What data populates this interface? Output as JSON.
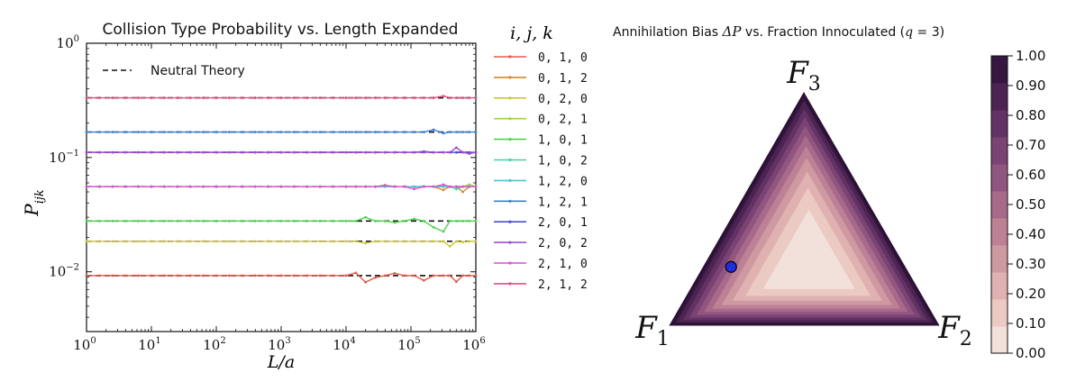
{
  "chart_data": [
    {
      "type": "line",
      "title": "Collision Type Probability vs. Length Expanded",
      "xlabel": "L/a",
      "ylabel": "P_ijk",
      "xscale": "log",
      "yscale": "log",
      "xlim": [
        1,
        1000000
      ],
      "ylim": [
        0.003,
        1
      ],
      "xticks": [
        {
          "value": 1,
          "base": "10",
          "exp": "0"
        },
        {
          "value": 10,
          "base": "10",
          "exp": "1"
        },
        {
          "value": 100,
          "base": "10",
          "exp": "2"
        },
        {
          "value": 1000,
          "base": "10",
          "exp": "3"
        },
        {
          "value": 10000,
          "base": "10",
          "exp": "4"
        },
        {
          "value": 100000,
          "base": "10",
          "exp": "5"
        },
        {
          "value": 1000000,
          "base": "10",
          "exp": "6"
        }
      ],
      "yticks": [
        {
          "value": 0.01,
          "base": "10",
          "exp": "−2"
        },
        {
          "value": 0.1,
          "base": "10",
          "exp": "−1"
        },
        {
          "value": 1,
          "base": "10",
          "exp": "0"
        }
      ],
      "legend_inner": {
        "label": "Neutral Theory",
        "position": "top-left"
      },
      "legend_title": "i, j, k",
      "legend_position": "outside-right",
      "neutral_levels": [
        0.333,
        0.167,
        0.111,
        0.0556,
        0.0278,
        0.0185,
        0.00926
      ],
      "x_samples_log10": [
        0,
        0.2,
        0.4,
        0.6,
        0.8,
        1.0,
        1.2,
        1.4,
        1.6,
        1.8,
        2.0,
        2.2,
        2.4,
        2.6,
        2.8,
        3.0,
        3.2,
        3.4,
        3.6,
        3.8,
        4.0,
        4.15,
        4.3,
        4.45,
        4.6,
        4.75,
        4.9,
        5.05,
        5.2,
        5.35,
        5.5,
        5.6,
        5.7,
        5.8,
        5.9,
        6.0
      ],
      "series": [
        {
          "name": "0, 1, 0",
          "color": "#e35a4c",
          "level": 0.00926,
          "deviations": {
            "4.15": 0.0098,
            "4.3": 0.0081,
            "4.45": 0.0089,
            "4.75": 0.0097,
            "5.2": 0.0084,
            "5.7": 0.0082,
            "6.0": 0.0076
          }
        },
        {
          "name": "0, 1, 2",
          "color": "#d4892b",
          "level": 0.0556,
          "deviations": {
            "5.5": 0.052,
            "5.8": 0.05,
            "6.0": 0.054
          }
        },
        {
          "name": "0, 2, 0",
          "color": "#c8c833",
          "level": 0.0185,
          "deviations": {
            "3.9": 0.0198,
            "4.3": 0.0178,
            "5.6": 0.0167,
            "5.8": 0.0182
          }
        },
        {
          "name": "0, 2, 1",
          "color": "#9bd04f",
          "level": 0.0556,
          "deviations": {
            "4.6": 0.0575,
            "5.9": 0.058
          }
        },
        {
          "name": "1, 0, 1",
          "color": "#4ed24e",
          "level": 0.0278,
          "deviations": {
            "4.3": 0.03,
            "4.75": 0.027,
            "5.05": 0.029,
            "5.35": 0.0245,
            "5.5": 0.0225,
            "6.0": 0.0305
          }
        },
        {
          "name": "1, 0, 2",
          "color": "#47d1a0",
          "level": 0.0556,
          "deviations": {
            "5.7": 0.053
          }
        },
        {
          "name": "1, 2, 0",
          "color": "#48c5d8",
          "level": 0.0556,
          "deviations": {
            "5.2": 0.056
          }
        },
        {
          "name": "1, 2, 1",
          "color": "#3a7fd6",
          "level": 0.167,
          "deviations": {
            "5.35": 0.175,
            "5.5": 0.163,
            "6.0": 0.16
          }
        },
        {
          "name": "2, 0, 1",
          "color": "#4a4bd6",
          "level": 0.111,
          "deviations": {
            "5.2": 0.113
          }
        },
        {
          "name": "2, 0, 2",
          "color": "#a04fd6",
          "level": 0.111,
          "deviations": {
            "5.7": 0.122,
            "5.9": 0.108
          }
        },
        {
          "name": "2, 1, 0",
          "color": "#e04fd0",
          "level": 0.0556,
          "deviations": {
            "4.6": 0.057,
            "5.05": 0.053,
            "5.5": 0.058
          }
        },
        {
          "name": "2, 1, 2",
          "color": "#e04f7c",
          "level": 0.333,
          "deviations": {
            "5.5": 0.345,
            "6.0": 0.325
          }
        }
      ]
    },
    {
      "type": "heatmap",
      "subtype": "ternary-contour",
      "title": "Annihilation Bias ΔP vs. Fraction Innoculated (q = 3)",
      "title_text": "Annihilation Bias ",
      "title_math": "ΔP",
      "title_mid": " vs. Fraction Innoculated (",
      "title_q": "q",
      "title_end": " = 3)",
      "vertex_labels": [
        {
          "base": "F",
          "sub": "1",
          "position": "bottom-left"
        },
        {
          "base": "F",
          "sub": "2",
          "position": "bottom-right"
        },
        {
          "base": "F",
          "sub": "3",
          "position": "top"
        }
      ],
      "marker": {
        "f1": 0.65,
        "f2": 0.1,
        "f3": 0.25,
        "color": "#1f2fe0"
      },
      "levels": [
        0.0,
        0.1,
        0.2,
        0.3,
        0.4,
        0.5,
        0.6,
        0.7,
        0.8,
        0.9,
        1.0
      ],
      "colorbar_ticks": [
        "0.00",
        "0.10",
        "0.20",
        "0.30",
        "0.40",
        "0.50",
        "0.60",
        "0.70",
        "0.80",
        "0.90",
        "1.00"
      ],
      "colors": [
        "#f2e0da",
        "#ebcac4",
        "#dfb1b0",
        "#cf99a2",
        "#bd8196",
        "#a86a8b",
        "#915680",
        "#7a4374",
        "#633264",
        "#4c2452",
        "#351740"
      ]
    }
  ]
}
